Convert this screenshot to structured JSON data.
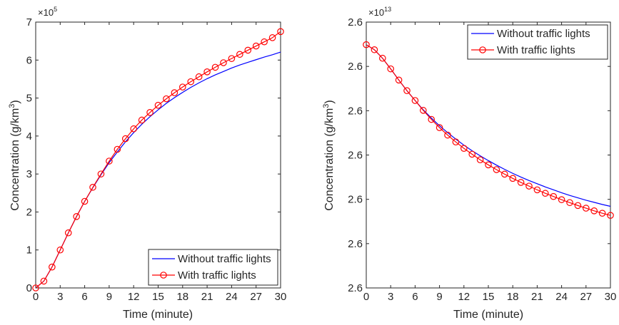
{
  "chart_data": [
    {
      "type": "line",
      "xlabel": "Time (minute)",
      "ylabel": "Concentration (g/km",
      "ylabel_superscript": "3",
      "ylabel_close": ")",
      "exponent_label": "×10",
      "exponent_power": "5",
      "xlim": [
        0,
        30
      ],
      "ylim": [
        0,
        700000
      ],
      "x_ticks": [
        0,
        3,
        6,
        9,
        12,
        15,
        18,
        21,
        24,
        27,
        30
      ],
      "x_tick_labels": [
        "0",
        "3",
        "6",
        "9",
        "12",
        "15",
        "18",
        "21",
        "24",
        "27",
        "30"
      ],
      "y_ticks": [
        0,
        100000,
        200000,
        300000,
        400000,
        500000,
        600000,
        700000
      ],
      "y_tick_labels": [
        "0",
        "1",
        "2",
        "3",
        "4",
        "5",
        "6",
        "7"
      ],
      "legend_position": "bottom-right",
      "series": [
        {
          "name": "Without traffic lights",
          "color": "#0000ff",
          "marker": "none",
          "x": [
            0,
            1,
            2,
            3,
            4,
            5,
            6,
            7,
            8,
            9,
            10,
            11,
            12,
            13,
            14,
            15,
            16,
            17,
            18,
            19,
            20,
            21,
            22,
            23,
            24,
            25,
            26,
            27,
            28,
            29,
            30
          ],
          "y": [
            0,
            18000,
            55000,
            100000,
            145000,
            188000,
            228000,
            264000,
            298000,
            330000,
            358000,
            385000,
            409000,
            431000,
            451000,
            469000,
            486000,
            501000,
            515000,
            528000,
            540000,
            551000,
            561000,
            570000,
            579000,
            587000,
            594000,
            601000,
            608000,
            614000,
            621000
          ]
        },
        {
          "name": "With traffic lights",
          "color": "#ff0000",
          "marker": "circle",
          "x": [
            0,
            1,
            2,
            3,
            4,
            5,
            6,
            7,
            8,
            9,
            10,
            11,
            12,
            13,
            14,
            15,
            16,
            17,
            18,
            19,
            20,
            21,
            22,
            23,
            24,
            25,
            26,
            27,
            28,
            29,
            30
          ],
          "y": [
            0,
            18000,
            55000,
            100000,
            145000,
            188000,
            228000,
            265000,
            300000,
            334000,
            365000,
            393000,
            419000,
            442000,
            462000,
            481000,
            498000,
            514000,
            529000,
            543000,
            556000,
            569000,
            581000,
            593000,
            604000,
            615000,
            626000,
            637000,
            648000,
            659000,
            675000
          ]
        }
      ]
    },
    {
      "type": "line",
      "xlabel": "Time (minute)",
      "ylabel": "Concentration (g/km",
      "ylabel_superscript": "3",
      "ylabel_close": ")",
      "exponent_label": "×10",
      "exponent_power": "13",
      "xlim": [
        0,
        30
      ],
      "ylim": [
        0,
        1
      ],
      "x_ticks": [
        0,
        3,
        6,
        9,
        12,
        15,
        18,
        21,
        24,
        27,
        30
      ],
      "x_tick_labels": [
        "0",
        "3",
        "6",
        "9",
        "12",
        "15",
        "18",
        "21",
        "24",
        "27",
        "30"
      ],
      "y_ticks": [
        0,
        0.1667,
        0.3333,
        0.5,
        0.6667,
        0.8333,
        1
      ],
      "y_tick_labels": [
        "2.6",
        "2.6",
        "2.6",
        "2.6",
        "2.6",
        "2.6",
        "2.6"
      ],
      "legend_position": "top-right",
      "series": [
        {
          "name": "Without traffic lights",
          "color": "#0000ff",
          "marker": "none",
          "x": [
            0,
            1,
            2,
            3,
            4,
            5,
            6,
            7,
            8,
            9,
            10,
            11,
            12,
            13,
            14,
            15,
            16,
            17,
            18,
            19,
            20,
            21,
            22,
            23,
            24,
            25,
            26,
            27,
            28,
            29,
            30
          ],
          "y": [
            0.915,
            0.896,
            0.864,
            0.824,
            0.782,
            0.742,
            0.705,
            0.67,
            0.639,
            0.61,
            0.584,
            0.56,
            0.537,
            0.516,
            0.497,
            0.479,
            0.462,
            0.446,
            0.431,
            0.417,
            0.404,
            0.392,
            0.38,
            0.369,
            0.358,
            0.348,
            0.339,
            0.33,
            0.322,
            0.314,
            0.307
          ]
        },
        {
          "name": "With traffic lights",
          "color": "#ff0000",
          "marker": "circle",
          "x": [
            0,
            1,
            2,
            3,
            4,
            5,
            6,
            7,
            8,
            9,
            10,
            11,
            12,
            13,
            14,
            15,
            16,
            17,
            18,
            19,
            20,
            21,
            22,
            23,
            24,
            25,
            26,
            27,
            28,
            29,
            30
          ],
          "y": [
            0.915,
            0.896,
            0.864,
            0.824,
            0.782,
            0.742,
            0.705,
            0.668,
            0.634,
            0.603,
            0.575,
            0.549,
            0.525,
            0.503,
            0.482,
            0.463,
            0.445,
            0.428,
            0.412,
            0.397,
            0.383,
            0.369,
            0.356,
            0.344,
            0.332,
            0.321,
            0.31,
            0.3,
            0.29,
            0.281,
            0.273
          ]
        }
      ]
    }
  ]
}
